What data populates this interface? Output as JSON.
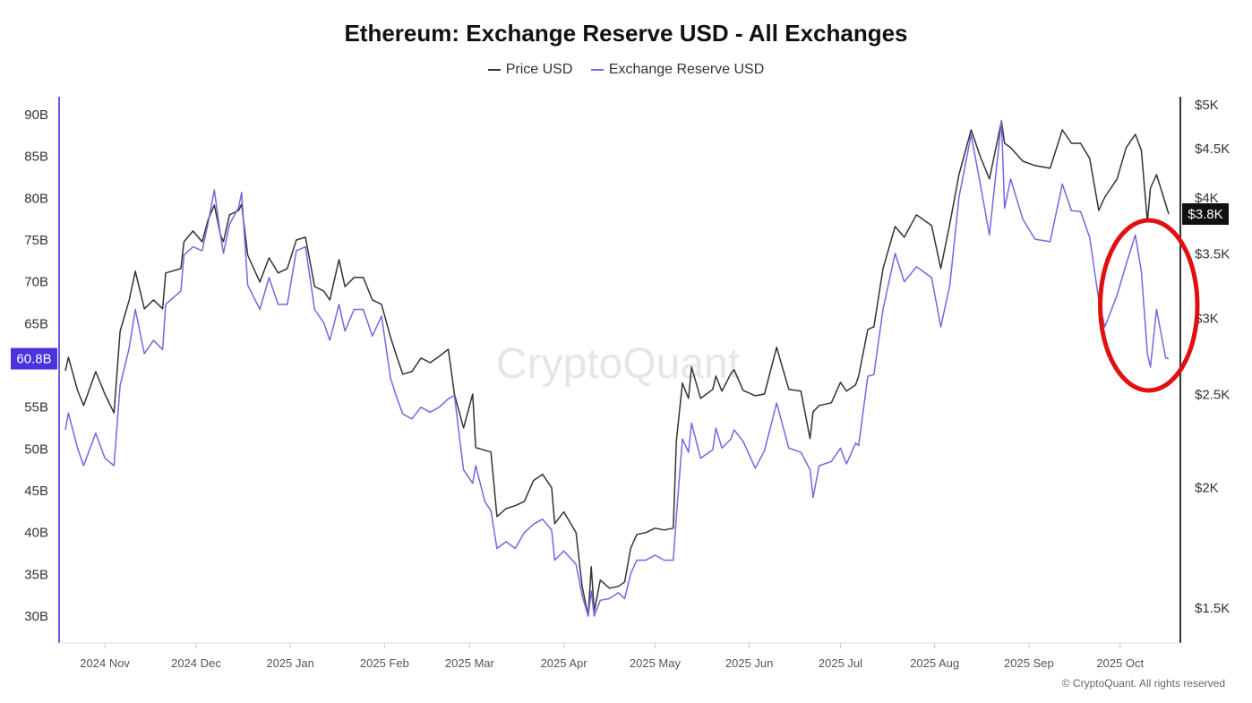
{
  "chart_data": {
    "type": "line",
    "title": "Ethereum: Exchange Reserve USD - All Exchanges",
    "legend_position": "top",
    "grid": false,
    "x_tick_labels": [
      "2024 Nov",
      "2024 Dec",
      "2025 Jan",
      "2025 Feb",
      "2025 Mar",
      "2025 Apr",
      "2025 May",
      "2025 Jun",
      "2025 Jul",
      "2025 Aug",
      "2025 Sep",
      "2025 Oct"
    ],
    "x_tick_dates": [
      "2024-11-01",
      "2024-12-01",
      "2025-01-01",
      "2025-02-01",
      "2025-03-01",
      "2025-04-01",
      "2025-05-01",
      "2025-06-01",
      "2025-07-01",
      "2025-08-01",
      "2025-09-01",
      "2025-10-01"
    ],
    "left_axis": {
      "ylim": [
        30,
        90
      ],
      "scale": "linear",
      "tick_labels": [
        "90B",
        "85B",
        "80B",
        "75B",
        "70B",
        "65B",
        "60B",
        "55B",
        "50B",
        "45B",
        "40B",
        "35B",
        "30B"
      ],
      "tick_values": [
        90,
        85,
        80,
        75,
        70,
        65,
        60,
        55,
        50,
        45,
        40,
        35,
        30
      ],
      "current_label": "60.8B"
    },
    "right_axis": {
      "ylim": [
        1500,
        5000
      ],
      "scale": "log",
      "tick_labels": [
        "$5K",
        "$4.5K",
        "$4K",
        "$3.5K",
        "$3K",
        "$2.5K",
        "$2K",
        "$1.5K"
      ],
      "tick_values": [
        5000,
        4500,
        4000,
        3500,
        3000,
        2500,
        2000,
        1500
      ],
      "current_label": "$3.8K"
    },
    "x": [
      "2024-10-19",
      "2024-10-20",
      "2024-10-23",
      "2024-10-25",
      "2024-10-29",
      "2024-11-01",
      "2024-11-04",
      "2024-11-06",
      "2024-11-09",
      "2024-11-11",
      "2024-11-14",
      "2024-11-17",
      "2024-11-20",
      "2024-11-21",
      "2024-11-26",
      "2024-11-27",
      "2024-11-30",
      "2024-12-03",
      "2024-12-05",
      "2024-12-07",
      "2024-12-09",
      "2024-12-10",
      "2024-12-12",
      "2024-12-15",
      "2024-12-16",
      "2024-12-18",
      "2024-12-22",
      "2024-12-25",
      "2024-12-28",
      "2024-12-31",
      "2025-01-03",
      "2025-01-06",
      "2025-01-09",
      "2025-01-12",
      "2025-01-14",
      "2025-01-17",
      "2025-01-19",
      "2025-01-22",
      "2025-01-25",
      "2025-01-28",
      "2025-01-31",
      "2025-02-03",
      "2025-02-05",
      "2025-02-07",
      "2025-02-10",
      "2025-02-13",
      "2025-02-16",
      "2025-02-19",
      "2025-02-22",
      "2025-02-24",
      "2025-02-27",
      "2025-03-02",
      "2025-03-03",
      "2025-03-06",
      "2025-03-08",
      "2025-03-10",
      "2025-03-13",
      "2025-03-16",
      "2025-03-19",
      "2025-03-22",
      "2025-03-25",
      "2025-03-28",
      "2025-03-29",
      "2025-04-01",
      "2025-04-05",
      "2025-04-07",
      "2025-04-09",
      "2025-04-10",
      "2025-04-11",
      "2025-04-13",
      "2025-04-16",
      "2025-04-19",
      "2025-04-21",
      "2025-04-23",
      "2025-04-25",
      "2025-04-28",
      "2025-05-01",
      "2025-05-04",
      "2025-05-07",
      "2025-05-08",
      "2025-05-10",
      "2025-05-12",
      "2025-05-13",
      "2025-05-16",
      "2025-05-20",
      "2025-05-21",
      "2025-05-23",
      "2025-05-26",
      "2025-05-27",
      "2025-05-30",
      "2025-06-03",
      "2025-06-06",
      "2025-06-10",
      "2025-06-14",
      "2025-06-18",
      "2025-06-21",
      "2025-06-22",
      "2025-06-24",
      "2025-06-28",
      "2025-07-01",
      "2025-07-03",
      "2025-07-06",
      "2025-07-07",
      "2025-07-10",
      "2025-07-12",
      "2025-07-15",
      "2025-07-19",
      "2025-07-22",
      "2025-07-26",
      "2025-07-31",
      "2025-08-03",
      "2025-08-06",
      "2025-08-09",
      "2025-08-13",
      "2025-08-16",
      "2025-08-19",
      "2025-08-23",
      "2025-08-24",
      "2025-08-26",
      "2025-08-30",
      "2025-09-03",
      "2025-09-08",
      "2025-09-12",
      "2025-09-15",
      "2025-09-18",
      "2025-09-21",
      "2025-09-24",
      "2025-09-26",
      "2025-09-30",
      "2025-10-03",
      "2025-10-06",
      "2025-10-08",
      "2025-10-10",
      "2025-10-11",
      "2025-10-13",
      "2025-10-16",
      "2025-10-17"
    ],
    "series": [
      {
        "name": "Price USD",
        "axis": "right",
        "color": "#333333",
        "values": [
          2646,
          2733,
          2525,
          2435,
          2641,
          2503,
          2393,
          2908,
          3135,
          3358,
          3069,
          3135,
          3069,
          3344,
          3379,
          3603,
          3697,
          3603,
          3801,
          3934,
          3665,
          3603,
          3843,
          3883,
          3942,
          3489,
          3272,
          3467,
          3344,
          3379,
          3618,
          3642,
          3237,
          3203,
          3135,
          3452,
          3237,
          3308,
          3308,
          3135,
          3102,
          2865,
          2739,
          2625,
          2641,
          2728,
          2698,
          2739,
          2786,
          2503,
          2308,
          2503,
          2202,
          2188,
          2179,
          1867,
          1903,
          1916,
          1936,
          2035,
          2066,
          2000,
          1836,
          1888,
          1797,
          1580,
          1472,
          1656,
          1488,
          1604,
          1573,
          1580,
          1597,
          1732,
          1789,
          1797,
          1816,
          1808,
          1816,
          2235,
          2569,
          2477,
          2670,
          2477,
          2531,
          2613,
          2520,
          2630,
          2653,
          2525,
          2493,
          2503,
          2799,
          2531,
          2520,
          2250,
          2399,
          2435,
          2451,
          2574,
          2520,
          2558,
          2613,
          2921,
          2940,
          3379,
          3737,
          3642,
          3843,
          3745,
          3379,
          3761,
          4231,
          4709,
          4417,
          4186,
          4811,
          4560,
          4512,
          4369,
          4323,
          4295,
          4709,
          4560,
          4560,
          4397,
          3883,
          4010,
          4186,
          4512,
          4659,
          4483,
          3777,
          4097,
          4231,
          3942,
          3850
        ]
      },
      {
        "name": "Exchange Reserve USD",
        "axis": "left",
        "color": "#7467e0",
        "values": [
          52.3,
          54.3,
          50.1,
          48.0,
          51.9,
          48.9,
          48.0,
          57.6,
          62.1,
          66.7,
          61.4,
          63.0,
          61.9,
          67.3,
          68.9,
          73.2,
          74.2,
          73.7,
          77.1,
          81.0,
          75.6,
          73.4,
          76.9,
          78.9,
          80.7,
          69.6,
          66.7,
          70.5,
          67.3,
          67.3,
          73.7,
          74.2,
          66.7,
          65.1,
          63.0,
          67.3,
          64.1,
          66.7,
          66.7,
          63.5,
          65.9,
          58.4,
          56.2,
          54.2,
          53.6,
          55.0,
          54.4,
          55.0,
          56.0,
          56.4,
          47.5,
          45.9,
          48.0,
          43.7,
          42.6,
          38.1,
          38.9,
          38.1,
          40.0,
          41.0,
          41.6,
          40.3,
          36.7,
          37.8,
          36.2,
          32.5,
          30.0,
          33.0,
          30.0,
          31.9,
          32.1,
          32.8,
          32.1,
          35.1,
          36.7,
          36.7,
          37.3,
          36.7,
          36.7,
          41.9,
          51.2,
          49.6,
          53.1,
          48.9,
          49.9,
          52.5,
          50.1,
          51.2,
          52.3,
          50.9,
          47.7,
          49.8,
          55.5,
          50.1,
          49.6,
          47.5,
          44.2,
          48.0,
          48.5,
          50.1,
          48.2,
          50.7,
          50.4,
          58.7,
          58.9,
          66.7,
          73.4,
          70.0,
          71.8,
          70.5,
          64.6,
          69.6,
          80.1,
          87.6,
          81.7,
          75.6,
          89.3,
          78.8,
          82.3,
          77.5,
          75.1,
          74.8,
          81.7,
          78.5,
          78.4,
          75.3,
          67.8,
          64.6,
          68.4,
          72.1,
          75.6,
          71.2,
          61.4,
          59.8,
          66.7,
          60.9,
          60.8
        ]
      }
    ],
    "annotations": [
      {
        "shape": "ellipse",
        "color": "#e01010",
        "around": [
          "2025-09-28",
          "2025-10-17"
        ]
      }
    ],
    "watermark": "CryptoQuant"
  },
  "legend": {
    "price_label": "Price USD",
    "reserve_label": "Exchange Reserve USD"
  },
  "footer": {
    "copyright": "© CryptoQuant. All rights reserved"
  }
}
